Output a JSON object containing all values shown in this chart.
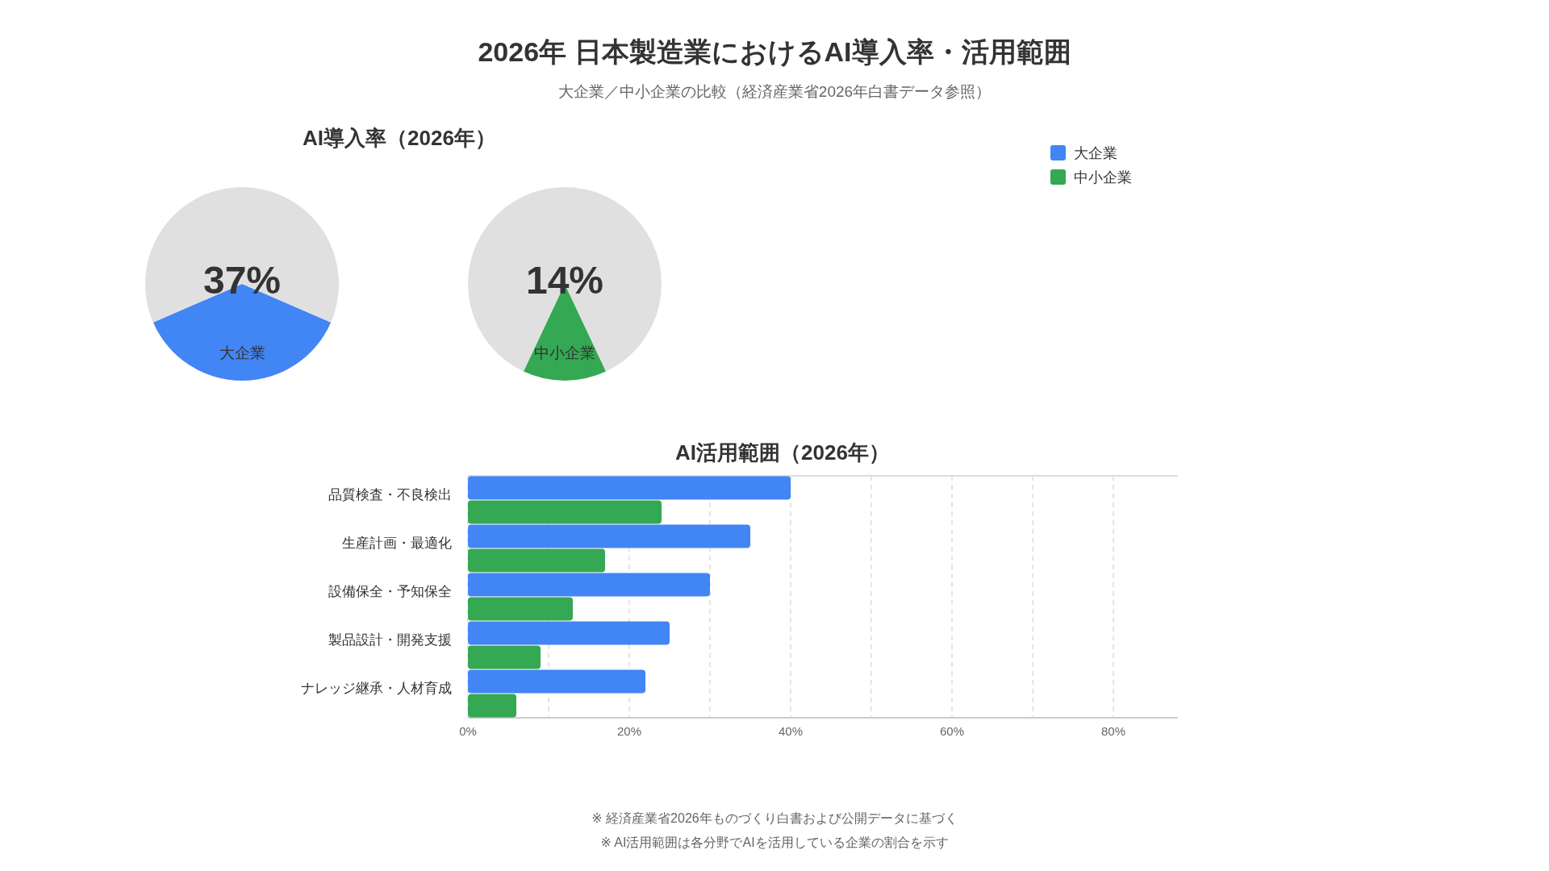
{
  "chart_data": [
    {
      "type": "pie",
      "title": "AI導入率（2026年）",
      "categories": [
        "大企業",
        null
      ],
      "values": [
        37,
        63
      ],
      "colors": [
        "#4285f4",
        "#e0e0e0"
      ],
      "value_labels": [
        "37%",
        null
      ]
    },
    {
      "type": "pie",
      "categories": [
        "中小企業",
        null
      ],
      "values": [
        14,
        86
      ],
      "colors": [
        "#34a853",
        "#e0e0e0"
      ],
      "value_labels": [
        "14%",
        null
      ]
    },
    {
      "type": "bar",
      "orientation": "horizontal",
      "title": "2026年 日本製造業におけるAI導入率・活用範囲",
      "subtitle": "大企業／中小企業の比較（経済産業省2026年白書データ参照）",
      "categories": [
        "品質検査・不良検出",
        "生産計画・最適化",
        "設備保全・予知保全",
        "製品設計・開発支援",
        "ナレッジ継承・人材育成"
      ],
      "series": [
        {
          "name": "大企業",
          "color": "#4285f4",
          "values": [
            40,
            35,
            30,
            25,
            22
          ]
        },
        {
          "name": "中小企業",
          "color": "#34a853",
          "values": [
            24,
            17,
            13,
            9,
            6
          ]
        }
      ],
      "xlim": [
        0,
        88
      ],
      "xticks": [
        {
          "value": 0,
          "label": "0%"
        },
        {
          "value": 10,
          "label": null
        },
        {
          "value": 20,
          "label": "20%"
        },
        {
          "value": 30,
          "label": null
        },
        {
          "value": 40,
          "label": "40%"
        },
        {
          "value": 50,
          "label": null
        },
        {
          "value": 60,
          "label": "60%"
        },
        {
          "value": 70,
          "label": null
        },
        {
          "value": 80,
          "label": "80%"
        }
      ],
      "grid": "x",
      "legend": "top right",
      "annotations": [
        "AI活用範囲（2026年）",
        "※ 経済産業省2026年ものづくり白書および公開データに基づく",
        "※ AI活用範囲は各分野でAIを活用している企業の割合を示す"
      ]
    }
  ]
}
